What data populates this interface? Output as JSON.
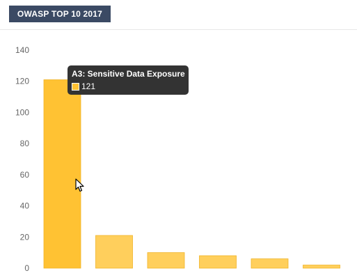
{
  "header": {
    "title": "OWASP TOP 10 2017"
  },
  "tooltip": {
    "title": "A3: Sensitive Data Exposure",
    "value": "121"
  },
  "colors": {
    "bar_active": "#ffc233",
    "bar": "#ffcf5c",
    "bar_stroke": "#f0b429",
    "header_bg": "#3b4a64",
    "tooltip_bg": "#333333",
    "axis_text": "#666666"
  },
  "chart_data": {
    "type": "bar",
    "title": "",
    "xlabel": "",
    "ylabel": "",
    "ylim": [
      0,
      140
    ],
    "yticks": [
      0,
      20,
      40,
      60,
      80,
      100,
      120,
      140
    ],
    "categories": [
      "",
      "",
      "",
      "",
      "",
      ""
    ],
    "values": [
      121,
      21,
      10,
      8,
      6,
      2
    ],
    "highlighted_index": 0,
    "grid": false,
    "legend": "none"
  }
}
